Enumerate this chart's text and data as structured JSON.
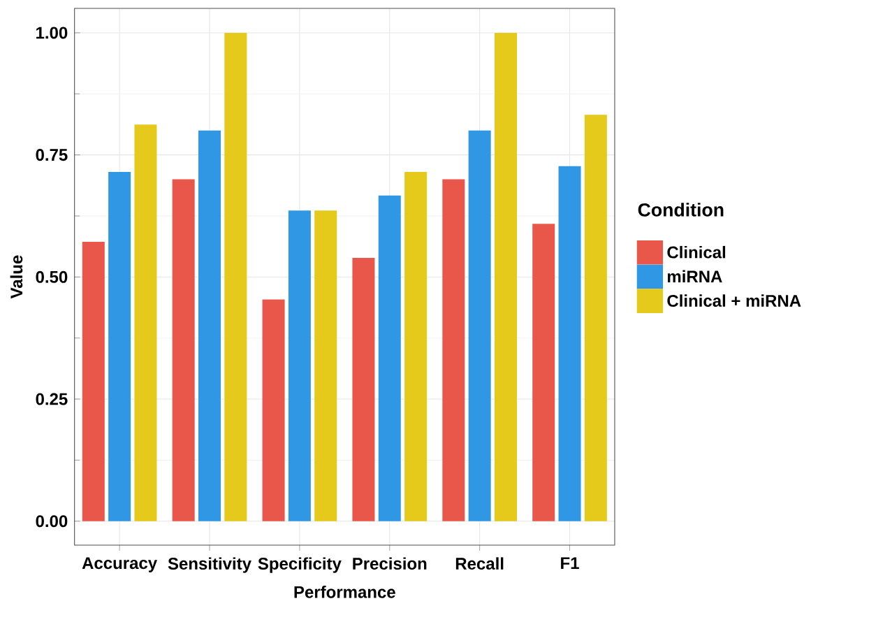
{
  "chart_data": {
    "type": "bar",
    "xlabel": "Performance",
    "ylabel": "Value",
    "legend_title": "Condition",
    "categories": [
      "Accuracy",
      "Sensitivity",
      "Specificity",
      "Precision",
      "Recall",
      "F1"
    ],
    "series": [
      {
        "name": "Clinical",
        "color": "#e8574a",
        "values": [
          0.572,
          0.7,
          0.454,
          0.539,
          0.7,
          0.609
        ]
      },
      {
        "name": "miRNA",
        "color": "#2f97e4",
        "values": [
          0.715,
          0.8,
          0.636,
          0.667,
          0.8,
          0.727
        ]
      },
      {
        "name": "Clinical + miRNA",
        "color": "#e5c91b",
        "values": [
          0.812,
          1.0,
          0.636,
          0.715,
          1.0,
          0.832
        ]
      }
    ],
    "ylim": [
      -0.049,
      1.05
    ],
    "yticks": [
      {
        "value": 0,
        "label": "0.00"
      },
      {
        "value": 0.25,
        "label": "0.25"
      },
      {
        "value": 0.5,
        "label": "0.50"
      },
      {
        "value": 0.75,
        "label": "0.75"
      },
      {
        "value": 1,
        "label": "1.00"
      }
    ],
    "grid": true,
    "legend": "right"
  }
}
